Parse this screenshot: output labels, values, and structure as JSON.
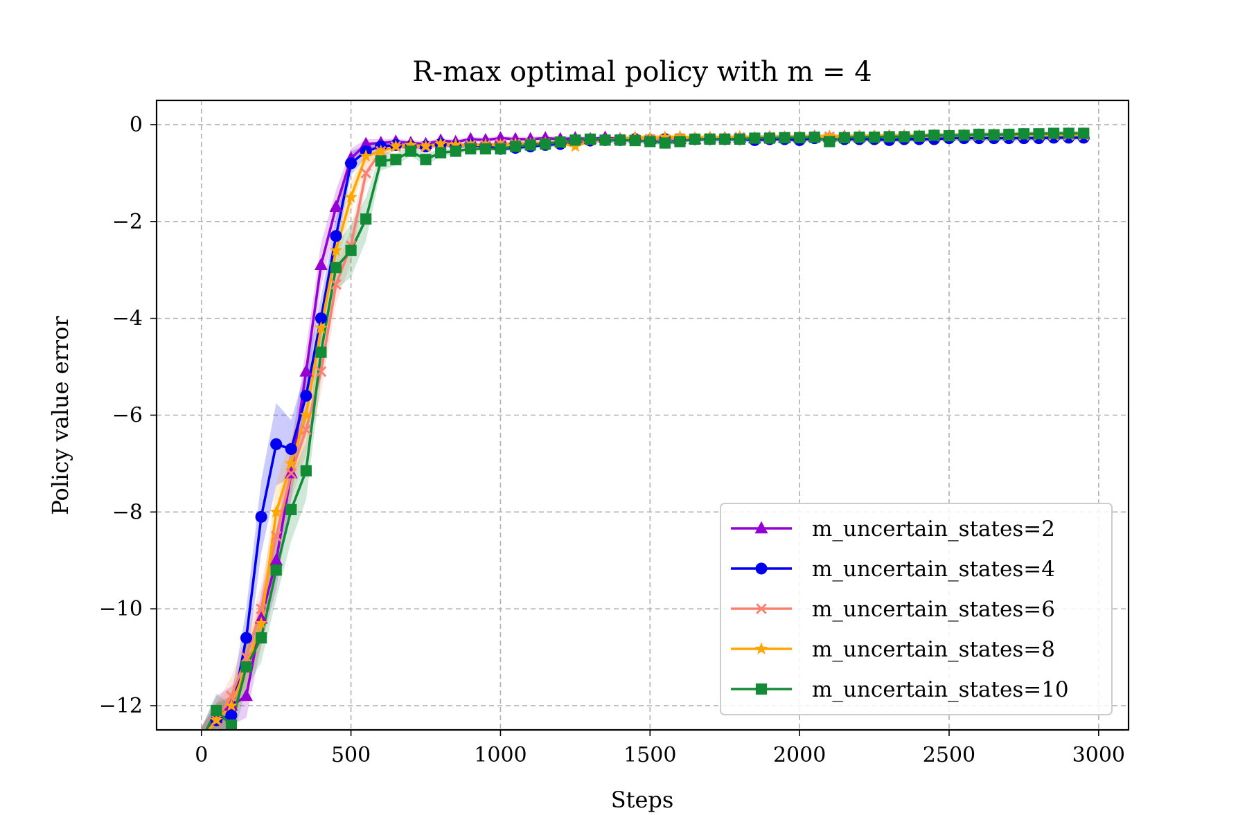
{
  "chart_data": {
    "type": "line",
    "title": "R-max optimal policy with m = 4",
    "xlabel": "Steps",
    "ylabel": "Policy value error",
    "xlim": [
      -150,
      3100
    ],
    "ylim": [
      -12.5,
      0.5
    ],
    "x_ticks": [
      0,
      500,
      1000,
      1500,
      2000,
      2500,
      3000
    ],
    "x_tick_labels": [
      "0",
      "500",
      "1000",
      "1500",
      "2000",
      "2500",
      "3000"
    ],
    "y_ticks": [
      0,
      -2,
      -4,
      -6,
      -8,
      -10,
      -12
    ],
    "y_tick_labels": [
      "0",
      "−2",
      "−4",
      "−6",
      "−8",
      "−10",
      "−12"
    ],
    "grid": true,
    "legend_position": "lower-right",
    "x": [
      0,
      50,
      100,
      150,
      200,
      250,
      300,
      350,
      400,
      450,
      500,
      550,
      600,
      650,
      700,
      750,
      800,
      850,
      900,
      950,
      1000,
      1050,
      1100,
      1150,
      1200,
      1250,
      1300,
      1350,
      1400,
      1450,
      1500,
      1550,
      1600,
      1650,
      1700,
      1750,
      1800,
      1850,
      1900,
      1950,
      2000,
      2050,
      2100,
      2150,
      2200,
      2250,
      2300,
      2350,
      2400,
      2450,
      2500,
      2550,
      2600,
      2650,
      2700,
      2750,
      2800,
      2850,
      2900,
      2950
    ],
    "series": [
      {
        "name": "m_uncertain_states=2",
        "color": "#9400d3",
        "marker": "triangle",
        "values": [
          -12.7,
          -12.2,
          -12.0,
          -11.8,
          -10.2,
          -9.0,
          -7.2,
          -5.1,
          -2.9,
          -1.7,
          -0.7,
          -0.4,
          -0.38,
          -0.35,
          -0.38,
          -0.4,
          -0.33,
          -0.36,
          -0.3,
          -0.32,
          -0.28,
          -0.3,
          -0.3,
          -0.28,
          -0.3,
          -0.28,
          -0.3,
          -0.27,
          -0.3,
          -0.28,
          -0.3,
          -0.28,
          -0.3,
          -0.3,
          -0.28,
          -0.28,
          -0.27,
          -0.28,
          -0.26,
          -0.27,
          -0.26,
          -0.25,
          -0.26,
          -0.25,
          -0.25,
          -0.25,
          -0.24,
          -0.24,
          -0.24,
          -0.23,
          -0.23,
          -0.23,
          -0.22,
          -0.22,
          -0.22,
          -0.21,
          -0.21,
          -0.21,
          -0.2,
          -0.2
        ],
        "band": [
          0.25,
          0.4,
          0.4,
          0.45,
          0.55,
          0.6,
          0.55,
          0.5,
          0.45,
          0.35,
          0.2,
          0.1,
          0.08,
          0.06,
          0.06,
          0.06,
          0.05,
          0.05,
          0.05,
          0.05,
          0.05,
          0.05,
          0.05,
          0.05,
          0.05,
          0.05,
          0.05,
          0.05,
          0.05,
          0.05,
          0.05,
          0.05,
          0.05,
          0.05,
          0.05,
          0.05,
          0.05,
          0.05,
          0.05,
          0.05,
          0.05,
          0.05,
          0.05,
          0.05,
          0.05,
          0.05,
          0.05,
          0.05,
          0.05,
          0.05,
          0.05,
          0.05,
          0.05,
          0.05,
          0.05,
          0.05,
          0.05,
          0.05,
          0.05,
          0.05
        ]
      },
      {
        "name": "m_uncertain_states=4",
        "color": "#0000ee",
        "marker": "circle",
        "values": [
          -12.7,
          -12.3,
          -12.2,
          -10.6,
          -8.1,
          -6.6,
          -6.7,
          -5.6,
          -4.0,
          -2.3,
          -0.8,
          -0.55,
          -0.45,
          -0.42,
          -0.45,
          -0.45,
          -0.4,
          -0.45,
          -0.42,
          -0.45,
          -0.5,
          -0.48,
          -0.45,
          -0.42,
          -0.4,
          -0.35,
          -0.33,
          -0.32,
          -0.32,
          -0.3,
          -0.32,
          -0.3,
          -0.3,
          -0.3,
          -0.3,
          -0.3,
          -0.3,
          -0.32,
          -0.3,
          -0.3,
          -0.32,
          -0.28,
          -0.3,
          -0.3,
          -0.3,
          -0.3,
          -0.32,
          -0.3,
          -0.3,
          -0.3,
          -0.28,
          -0.28,
          -0.28,
          -0.28,
          -0.28,
          -0.28,
          -0.28,
          -0.27,
          -0.27,
          -0.27
        ],
        "band": [
          0.25,
          0.35,
          0.4,
          0.6,
          0.75,
          0.85,
          0.6,
          0.55,
          0.45,
          0.35,
          0.25,
          0.12,
          0.08,
          0.06,
          0.06,
          0.06,
          0.05,
          0.05,
          0.05,
          0.05,
          0.05,
          0.05,
          0.05,
          0.05,
          0.05,
          0.05,
          0.05,
          0.05,
          0.05,
          0.05,
          0.05,
          0.05,
          0.05,
          0.05,
          0.05,
          0.05,
          0.05,
          0.05,
          0.05,
          0.05,
          0.05,
          0.05,
          0.05,
          0.05,
          0.05,
          0.05,
          0.05,
          0.05,
          0.05,
          0.05,
          0.05,
          0.05,
          0.05,
          0.05,
          0.05,
          0.05,
          0.05,
          0.05,
          0.05,
          0.05
        ]
      },
      {
        "name": "m_uncertain_states=6",
        "color": "#fa8072",
        "marker": "x",
        "values": [
          -12.7,
          -12.3,
          -11.8,
          -11.0,
          -10.0,
          -8.5,
          -7.2,
          -6.3,
          -5.1,
          -3.3,
          -2.5,
          -1.0,
          -0.55,
          -0.45,
          -0.48,
          -0.45,
          -0.42,
          -0.45,
          -0.42,
          -0.42,
          -0.4,
          -0.4,
          -0.38,
          -0.38,
          -0.36,
          -0.34,
          -0.32,
          -0.32,
          -0.3,
          -0.3,
          -0.3,
          -0.3,
          -0.28,
          -0.3,
          -0.28,
          -0.28,
          -0.26,
          -0.28,
          -0.26,
          -0.26,
          -0.26,
          -0.26,
          -0.25,
          -0.26,
          -0.25,
          -0.25,
          -0.25,
          -0.24,
          -0.24,
          -0.24,
          -0.24,
          -0.23,
          -0.23,
          -0.23,
          -0.23,
          -0.22,
          -0.22,
          -0.22,
          -0.22,
          -0.22
        ],
        "band": [
          0.25,
          0.35,
          0.4,
          0.45,
          0.5,
          0.55,
          0.55,
          0.5,
          0.45,
          0.4,
          0.35,
          0.25,
          0.12,
          0.08,
          0.06,
          0.06,
          0.05,
          0.05,
          0.05,
          0.05,
          0.05,
          0.05,
          0.05,
          0.05,
          0.05,
          0.05,
          0.05,
          0.05,
          0.05,
          0.05,
          0.05,
          0.05,
          0.05,
          0.05,
          0.05,
          0.05,
          0.05,
          0.05,
          0.05,
          0.05,
          0.05,
          0.05,
          0.05,
          0.05,
          0.05,
          0.05,
          0.05,
          0.05,
          0.05,
          0.05,
          0.05,
          0.05,
          0.05,
          0.05,
          0.05,
          0.05,
          0.05,
          0.05,
          0.05,
          0.05
        ]
      },
      {
        "name": "m_uncertain_states=8",
        "color": "#ffa500",
        "marker": "star",
        "values": [
          -12.7,
          -12.3,
          -12.0,
          -11.2,
          -10.3,
          -8.0,
          -7.0,
          -6.0,
          -4.2,
          -2.6,
          -1.5,
          -0.65,
          -0.55,
          -0.45,
          -0.42,
          -0.45,
          -0.4,
          -0.42,
          -0.42,
          -0.42,
          -0.42,
          -0.4,
          -0.4,
          -0.38,
          -0.38,
          -0.45,
          -0.33,
          -0.32,
          -0.3,
          -0.26,
          -0.27,
          -0.26,
          -0.25,
          -0.27,
          -0.26,
          -0.27,
          -0.25,
          -0.27,
          -0.25,
          -0.26,
          -0.25,
          -0.25,
          -0.24,
          -0.25,
          -0.24,
          -0.24,
          -0.23,
          -0.23,
          -0.23,
          -0.22,
          -0.22,
          -0.22,
          -0.22,
          -0.21,
          -0.21,
          -0.21,
          -0.2,
          -0.2,
          -0.2,
          -0.2
        ],
        "band": [
          0.25,
          0.35,
          0.4,
          0.45,
          0.5,
          0.6,
          0.55,
          0.5,
          0.45,
          0.4,
          0.3,
          0.15,
          0.1,
          0.08,
          0.06,
          0.06,
          0.05,
          0.05,
          0.05,
          0.05,
          0.05,
          0.05,
          0.05,
          0.05,
          0.05,
          0.05,
          0.05,
          0.05,
          0.05,
          0.05,
          0.05,
          0.05,
          0.05,
          0.05,
          0.05,
          0.05,
          0.05,
          0.05,
          0.05,
          0.05,
          0.05,
          0.05,
          0.05,
          0.05,
          0.05,
          0.05,
          0.05,
          0.05,
          0.05,
          0.05,
          0.05,
          0.05,
          0.05,
          0.05,
          0.05,
          0.05,
          0.05,
          0.05,
          0.05,
          0.05
        ]
      },
      {
        "name": "m_uncertain_states=10",
        "color": "#138a36",
        "marker": "square",
        "values": [
          -12.7,
          -12.1,
          -12.4,
          -11.2,
          -10.6,
          -9.2,
          -7.95,
          -7.15,
          -4.7,
          -2.95,
          -2.6,
          -1.95,
          -0.75,
          -0.72,
          -0.55,
          -0.72,
          -0.58,
          -0.55,
          -0.5,
          -0.5,
          -0.5,
          -0.45,
          -0.42,
          -0.4,
          -0.36,
          -0.32,
          -0.3,
          -0.32,
          -0.32,
          -0.33,
          -0.35,
          -0.38,
          -0.35,
          -0.3,
          -0.3,
          -0.3,
          -0.3,
          -0.28,
          -0.28,
          -0.27,
          -0.27,
          -0.26,
          -0.35,
          -0.27,
          -0.26,
          -0.26,
          -0.25,
          -0.25,
          -0.24,
          -0.22,
          -0.23,
          -0.22,
          -0.2,
          -0.21,
          -0.2,
          -0.19,
          -0.19,
          -0.18,
          -0.18,
          -0.18
        ],
        "band": [
          0.25,
          0.35,
          0.4,
          0.45,
          0.5,
          0.6,
          0.65,
          0.6,
          0.55,
          0.45,
          0.55,
          0.45,
          0.2,
          0.12,
          0.1,
          0.12,
          0.08,
          0.06,
          0.05,
          0.05,
          0.05,
          0.05,
          0.05,
          0.05,
          0.05,
          0.05,
          0.05,
          0.05,
          0.05,
          0.05,
          0.05,
          0.05,
          0.05,
          0.05,
          0.05,
          0.05,
          0.05,
          0.05,
          0.05,
          0.05,
          0.05,
          0.05,
          0.05,
          0.05,
          0.05,
          0.05,
          0.05,
          0.05,
          0.05,
          0.05,
          0.05,
          0.05,
          0.05,
          0.05,
          0.05,
          0.05,
          0.05,
          0.05,
          0.05,
          0.05
        ]
      }
    ]
  }
}
